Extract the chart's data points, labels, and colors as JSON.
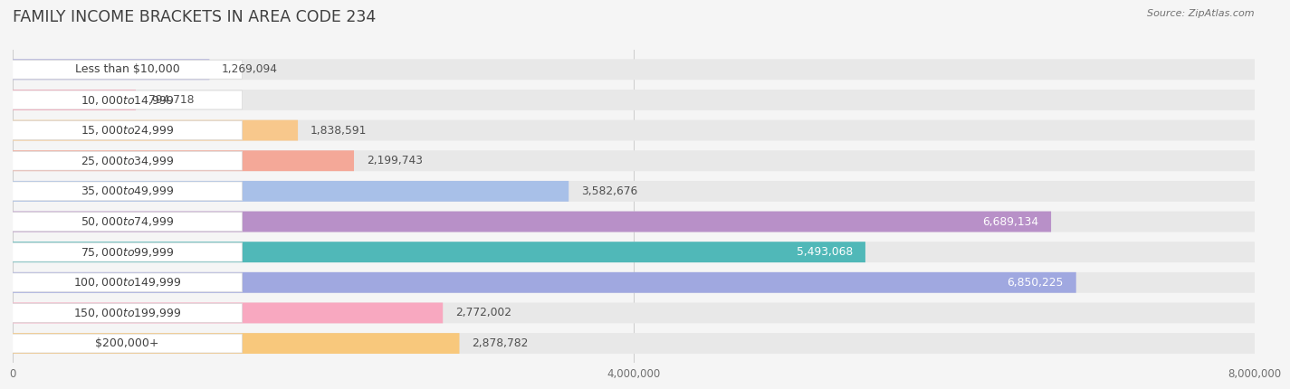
{
  "title": "FAMILY INCOME BRACKETS IN AREA CODE 234",
  "source": "Source: ZipAtlas.com",
  "categories": [
    "Less than $10,000",
    "$10,000 to $14,999",
    "$15,000 to $24,999",
    "$25,000 to $34,999",
    "$35,000 to $49,999",
    "$50,000 to $74,999",
    "$75,000 to $99,999",
    "$100,000 to $149,999",
    "$150,000 to $199,999",
    "$200,000+"
  ],
  "values": [
    1269094,
    794718,
    1838591,
    2199743,
    3582676,
    6689134,
    5493068,
    6850225,
    2772002,
    2878782
  ],
  "bar_colors": [
    "#a8a8d8",
    "#f4a0b4",
    "#f8c88c",
    "#f4a898",
    "#a8c0e8",
    "#b890c8",
    "#50b8b8",
    "#a0a8e0",
    "#f8a8c0",
    "#f8c87c"
  ],
  "bg_color": "#f5f5f5",
  "bar_bg_color": "#e8e8e8",
  "xlim": [
    0,
    8000000
  ],
  "xtick_labels": [
    "0",
    "4,000,000",
    "8,000,000"
  ],
  "title_color": "#404040",
  "label_color": "#404040",
  "value_color_dark": "#505050",
  "value_color_light": "#ffffff",
  "bar_height": 0.68,
  "label_fontsize": 9.0,
  "value_fontsize": 8.8,
  "title_fontsize": 12.5
}
